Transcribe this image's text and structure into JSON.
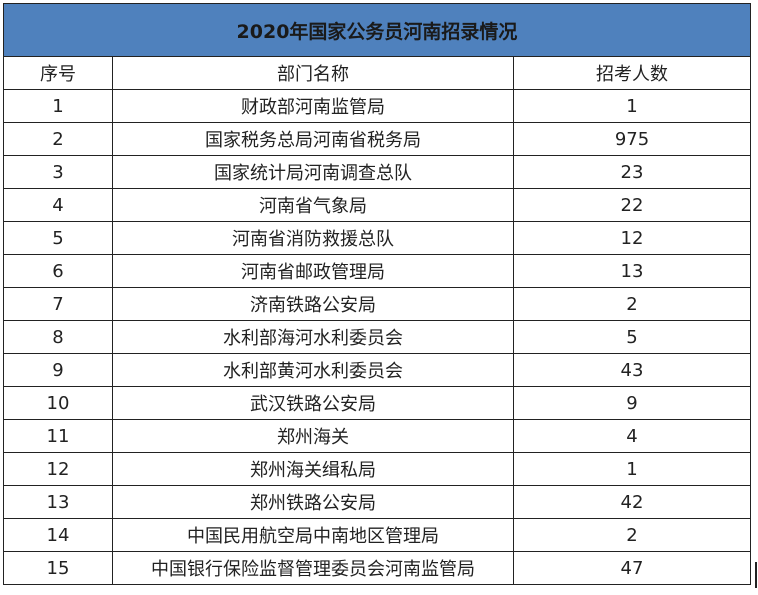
{
  "title": "2020年国家公务员河南招录情况",
  "headers": [
    "序号",
    "部门名称",
    "招考人数"
  ],
  "rows": [
    [
      "1",
      "财政部河南监管局",
      "1"
    ],
    [
      "2",
      "国家税务总局河南省税务局",
      "975"
    ],
    [
      "3",
      "国家统计局河南调查总队",
      "23"
    ],
    [
      "4",
      "河南省气象局",
      "22"
    ],
    [
      "5",
      "河南省消防救援总队",
      "12"
    ],
    [
      "6",
      "河南省邮政管理局",
      "13"
    ],
    [
      "7",
      "济南铁路公安局",
      "2"
    ],
    [
      "8",
      "水利部海河水利委员会",
      "5"
    ],
    [
      "9",
      "水利部黄河水利委员会",
      "43"
    ],
    [
      "10",
      "武汉铁路公安局",
      "9"
    ],
    [
      "11",
      "郑州海关",
      "4"
    ],
    [
      "12",
      "郑州海关缉私局",
      "1"
    ],
    [
      "13",
      "郑州铁路公安局",
      "42"
    ],
    [
      "14",
      "中国民用航空局中南地区管理局",
      "2"
    ],
    [
      "15",
      "中国银行保险监督管理委员会河南监管局",
      "47"
    ]
  ],
  "colors": {
    "title_bg": "#4f81bd"
  }
}
